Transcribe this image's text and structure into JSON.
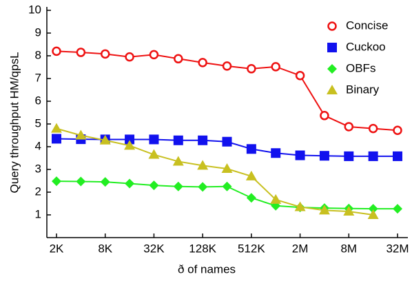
{
  "chart_data": {
    "type": "line",
    "x_label": "ð of names",
    "y_label": "Query throughput HM/qpsL",
    "categories": [
      "2K",
      null,
      "8K",
      null,
      "32K",
      null,
      "128K",
      null,
      "512K",
      null,
      "2M",
      null,
      "8M",
      null,
      "32M"
    ],
    "ylim": [
      0,
      10
    ],
    "yticks": [
      1,
      2,
      3,
      4,
      5,
      6,
      7,
      8,
      9,
      10
    ],
    "legend": "upper right",
    "series": [
      {
        "name": "Concise",
        "color": "#ee1111",
        "marker": "open-circle",
        "values": [
          8.2,
          8.15,
          8.08,
          7.95,
          8.05,
          7.87,
          7.7,
          7.55,
          7.43,
          7.52,
          7.13,
          5.37,
          4.88,
          4.8,
          4.72
        ]
      },
      {
        "name": "Cuckoo",
        "color": "#1111ee",
        "marker": "square",
        "values": [
          4.35,
          4.33,
          4.32,
          4.32,
          4.32,
          4.28,
          4.28,
          4.22,
          3.9,
          3.72,
          3.62,
          3.6,
          3.58,
          3.58,
          3.58
        ]
      },
      {
        "name": "OBFs",
        "color": "#22ee22",
        "marker": "diamond",
        "values": [
          2.48,
          2.47,
          2.45,
          2.38,
          2.3,
          2.25,
          2.23,
          2.25,
          1.75,
          1.4,
          1.33,
          1.3,
          1.28,
          1.27,
          1.27
        ]
      },
      {
        "name": "Binary",
        "color": "#c8c020",
        "marker": "triangle",
        "values": [
          4.8,
          4.5,
          4.28,
          4.05,
          3.65,
          3.35,
          3.17,
          3.03,
          2.7,
          1.67,
          1.35,
          1.2,
          1.15,
          1.0,
          null
        ]
      }
    ]
  }
}
